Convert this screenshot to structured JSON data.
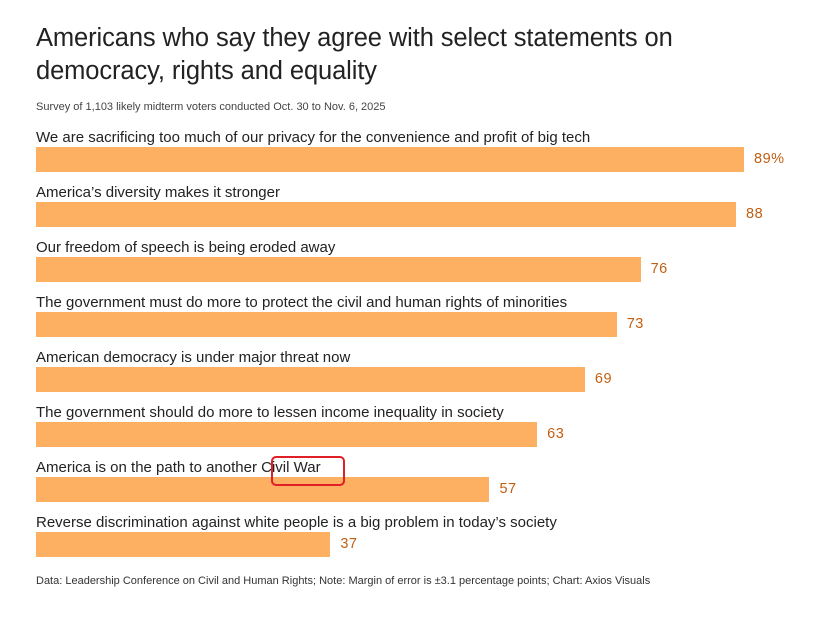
{
  "chart_data": {
    "type": "bar",
    "orientation": "horizontal",
    "title": "Americans who say they agree with select statements on democracy, rights and equality",
    "subtitle": "Survey of 1,103 likely midterm voters conducted Oct. 30 to Nov. 6, 2025",
    "categories": [
      "We are sacrificing too much of our privacy for the convenience and profit of big tech",
      "America’s diversity makes it stronger",
      "Our freedom of speech is being eroded away",
      "The government must do more to protect the civil and human rights of minorities",
      "American democracy is under major threat now",
      "The government should do more to lessen income inequality in society",
      "America is on the path to another Civil War",
      "Reverse discrimination against white people is a big problem in today’s society"
    ],
    "values": [
      89,
      88,
      76,
      73,
      69,
      63,
      57,
      37
    ],
    "value_labels": [
      "89%",
      "88",
      "76",
      "73",
      "69",
      "63",
      "57",
      "37"
    ],
    "xlim": [
      0,
      100
    ],
    "unit": "%",
    "bar_color": "#fdb062",
    "value_label_color": "#c25e12",
    "footer": "Data: Leadership Conference on Civil and Human Rights; Note: Margin of error is ±3.1 percentage points; Chart: Axios Visuals",
    "annotation": {
      "text": "Civil War",
      "category_index": 6,
      "style": "red box",
      "color": "#e01f26"
    }
  }
}
